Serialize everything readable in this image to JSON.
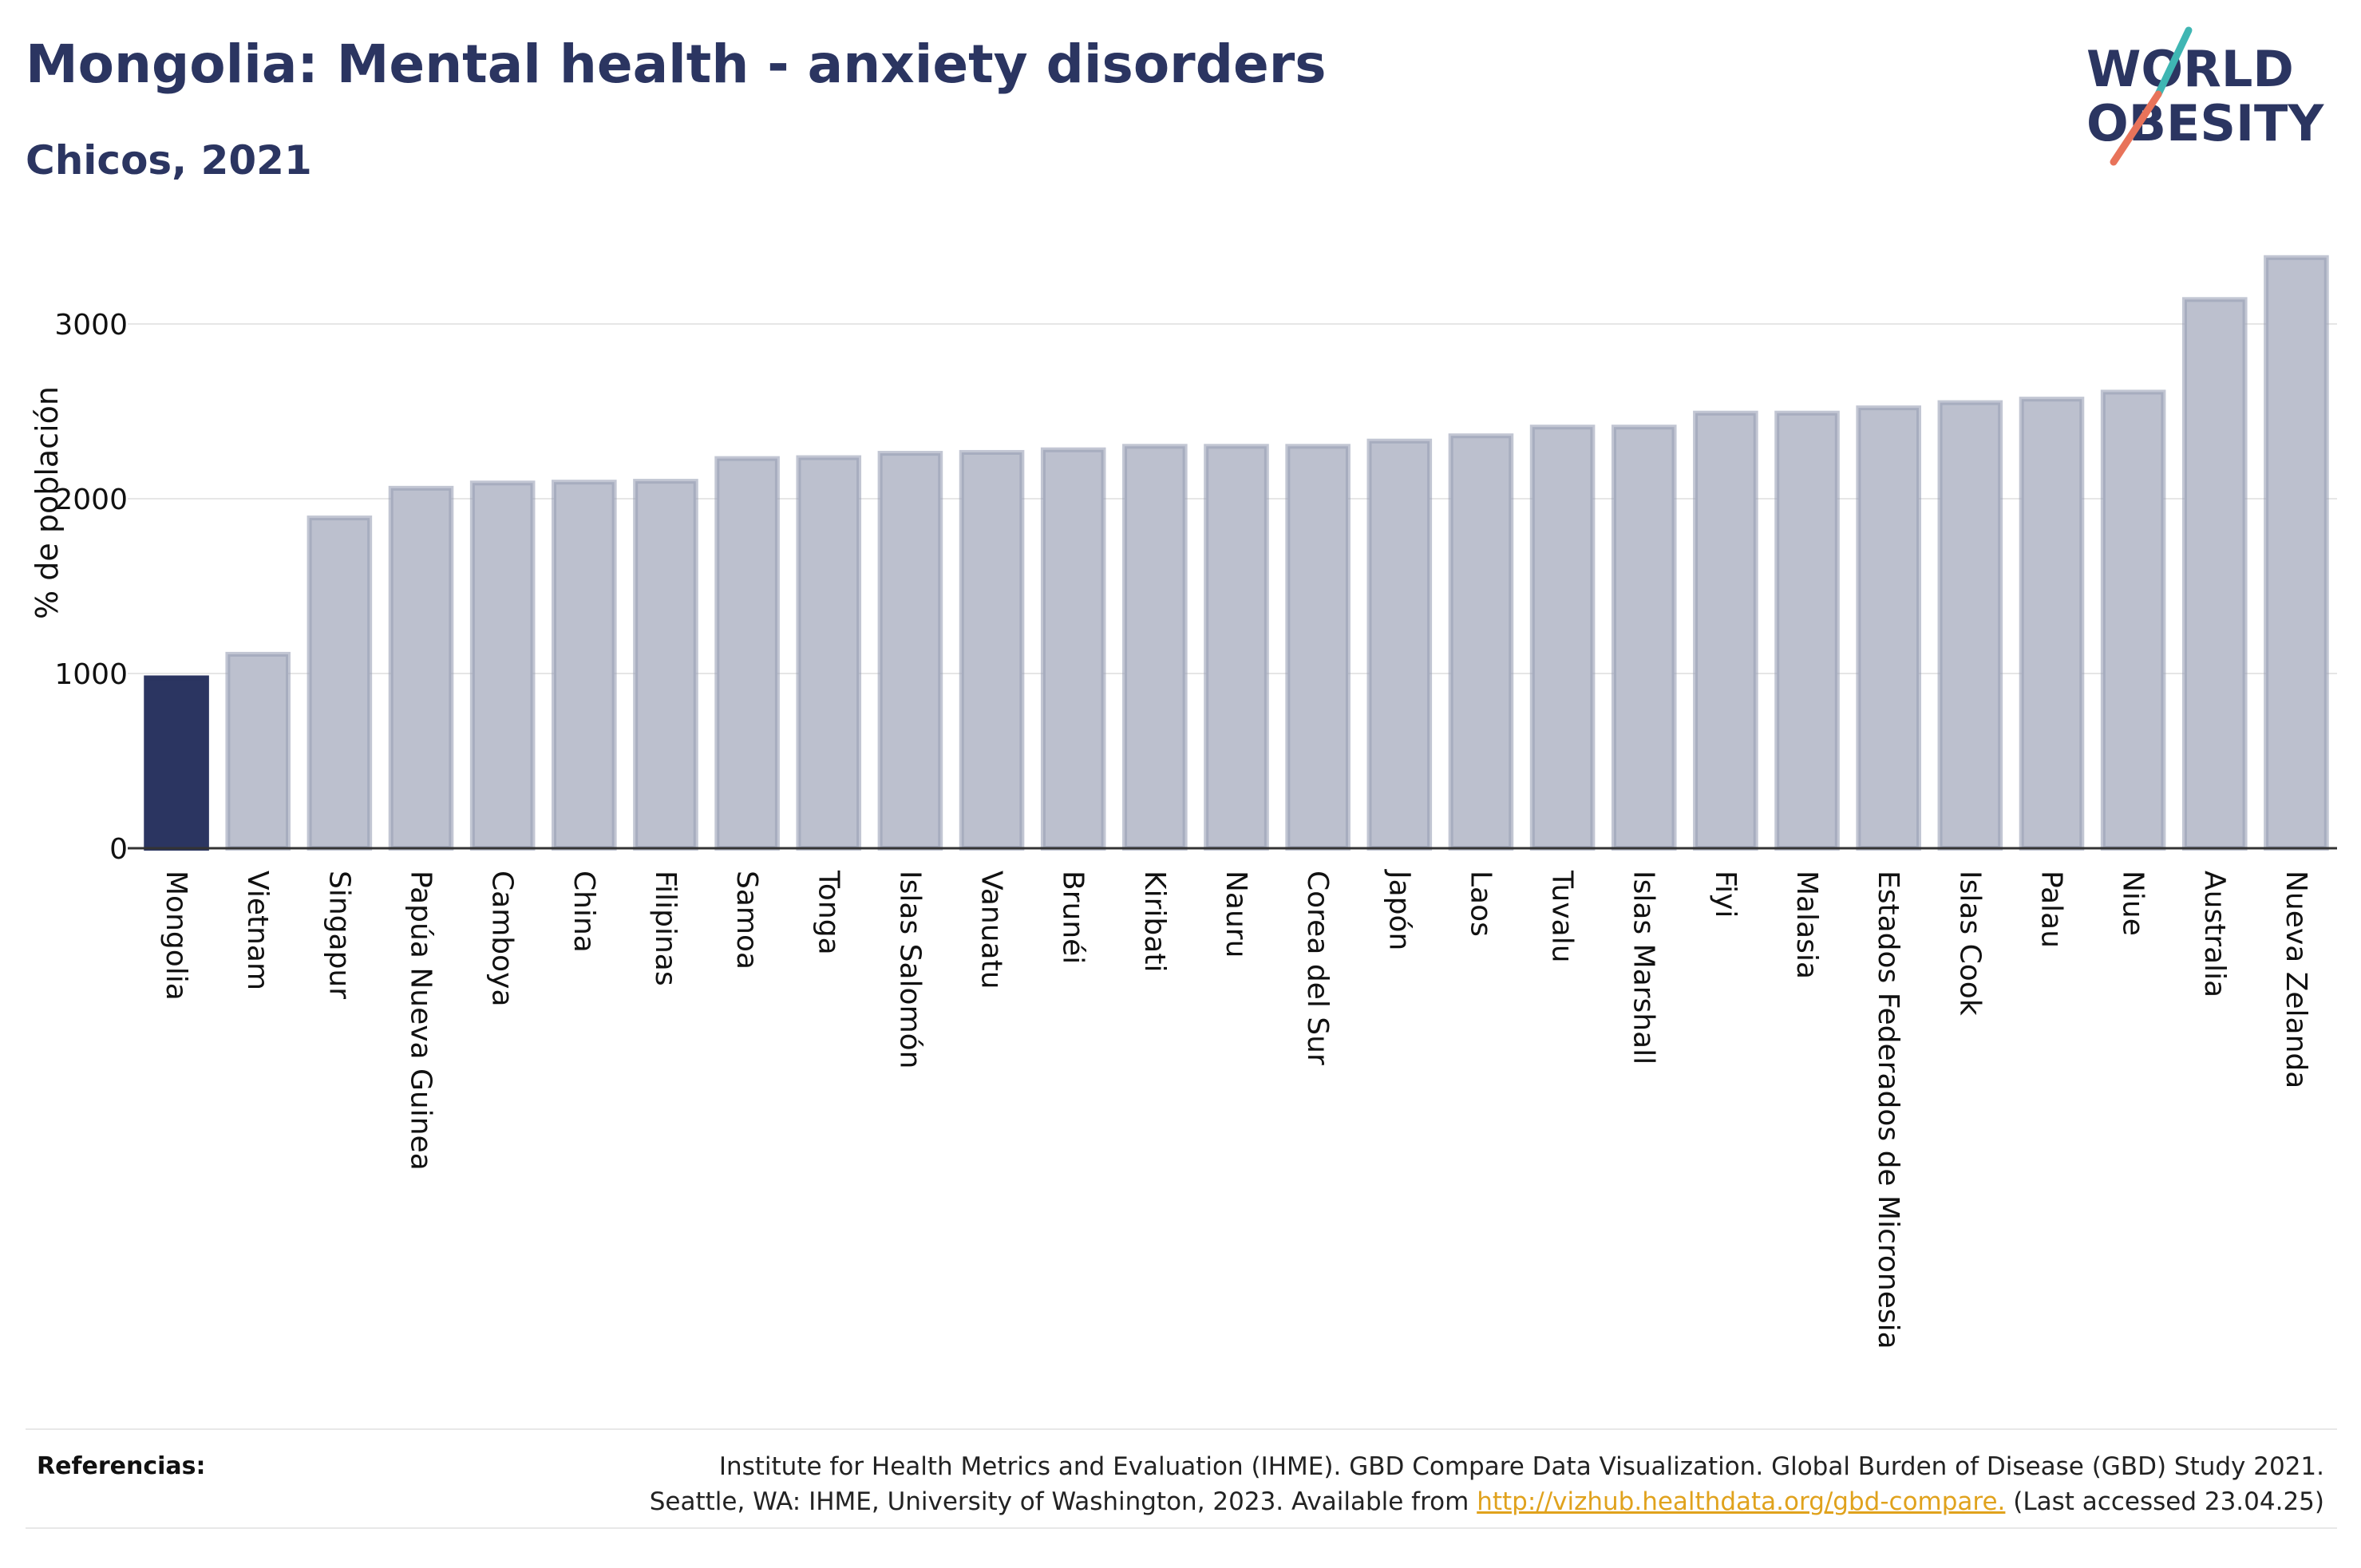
{
  "header": {
    "title": "Mongolia: Mental health - anxiety disorders",
    "subtitle": "Chicos, 2021"
  },
  "logo": {
    "line1": "WORLD",
    "line2": "OBESITY",
    "slash_colors": [
      "#3fb6b3",
      "#e8735a"
    ],
    "text_color": "#2b3561"
  },
  "chart_data": {
    "type": "bar",
    "ylabel": "% de población",
    "ylim": [
      0,
      3500
    ],
    "yticks": [
      0,
      1000,
      2000,
      3000
    ],
    "grid": true,
    "highlight_color": "#2b3561",
    "bar_color": "#bcc0ce",
    "bar_edge_color": "#9aa0b6",
    "categories": [
      "Mongolia",
      "Vietnam",
      "Singapur",
      "Papúa Nueva Guinea",
      "Camboya",
      "China",
      "Filipinas",
      "Samoa",
      "Tonga",
      "Islas Salomón",
      "Vanuatu",
      "Brunéi",
      "Kiribati",
      "Nauru",
      "Corea del Sur",
      "Japón",
      "Laos",
      "Tuvalu",
      "Islas Marshall",
      "Fiyi",
      "Malasia",
      "Estados Federados de Micronesia",
      "Islas Cook",
      "Palau",
      "Niue",
      "Australia",
      "Nueva Zelanda"
    ],
    "values": [
      975,
      1110,
      1890,
      2060,
      2090,
      2095,
      2100,
      2230,
      2235,
      2260,
      2265,
      2280,
      2300,
      2300,
      2300,
      2330,
      2360,
      2410,
      2410,
      2490,
      2490,
      2520,
      2550,
      2570,
      2610,
      3140,
      3380
    ],
    "highlight": "Mongolia"
  },
  "footer": {
    "label": "Referencias:",
    "line1": "Institute for Health Metrics and Evaluation (IHME). GBD Compare Data Visualization. Global Burden of Disease (GBD) Study 2021.",
    "line2_before": "Seattle, WA: IHME, University of Washington, 2023. Available from ",
    "link": "http://vizhub.healthdata.org/gbd-compare.",
    "line2_after": " (Last accessed 23.04.25)"
  }
}
